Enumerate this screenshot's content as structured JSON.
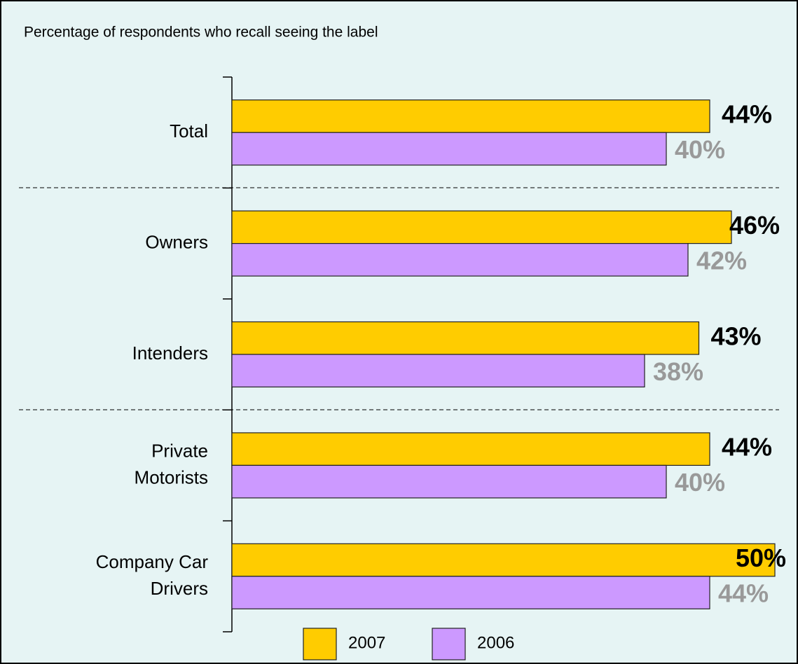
{
  "chart_data": {
    "type": "hbar",
    "title": "Percentage of respondents who recall seeing the label",
    "categories": [
      "Total",
      "Owners",
      "Intenders",
      "Private\nMotorists",
      "Company Car\nDrivers"
    ],
    "series": [
      {
        "name": "2007",
        "color": "#ffcc00",
        "label_color": "#000000",
        "values": [
          44,
          46,
          43,
          44,
          50
        ],
        "value_labels": [
          "44%",
          "46%",
          "43%",
          "44%",
          "50%"
        ]
      },
      {
        "name": "2006",
        "color": "#cc99ff",
        "label_color": "#999999",
        "values": [
          40,
          42,
          38,
          40,
          44
        ],
        "value_labels": [
          "40%",
          "42%",
          "38%",
          "40%",
          "44%"
        ]
      }
    ],
    "xlim": [
      0,
      50
    ],
    "legend": "bottom"
  }
}
